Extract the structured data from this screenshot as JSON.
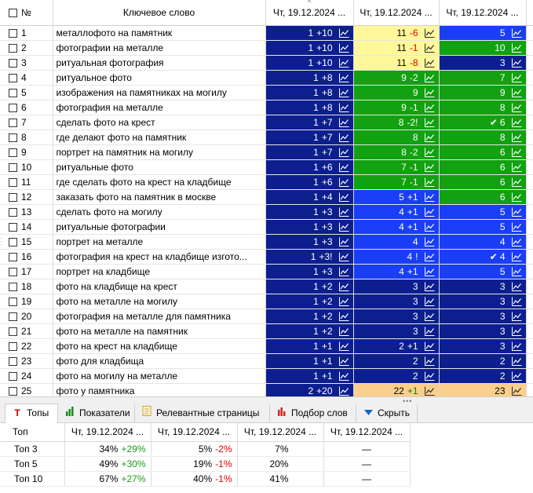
{
  "header": {
    "num_label": "№",
    "keyword_label": "Ключевое слово",
    "date_cols": [
      "Чт, 19.12.2024 ...",
      "Чт, 19.12.2024 ...",
      "Чт, 19.12.2024 ..."
    ]
  },
  "colors": {
    "navy": "#0d1f8e",
    "blue": "#1a3ef5",
    "green": "#12a110",
    "yellow": "#fff89a",
    "orange": "#fdcf8c"
  },
  "rows": [
    {
      "n": "1",
      "kw": "металлофото на памятник",
      "c": [
        {
          "v": "1",
          "d": "+10",
          "col": "navy"
        },
        {
          "v": "11",
          "d": "-6",
          "col": "yellow",
          "neg": true
        },
        {
          "v": "5",
          "d": "",
          "col": "blue"
        }
      ]
    },
    {
      "n": "2",
      "kw": "фотографии на металле",
      "c": [
        {
          "v": "1",
          "d": "+10",
          "col": "navy"
        },
        {
          "v": "11",
          "d": "-1",
          "col": "yellow",
          "neg": true
        },
        {
          "v": "10",
          "d": "",
          "col": "green"
        }
      ]
    },
    {
      "n": "3",
      "kw": "ритуальная фотография",
      "c": [
        {
          "v": "1",
          "d": "+10",
          "col": "navy"
        },
        {
          "v": "11",
          "d": "-8",
          "col": "yellow",
          "neg": true
        },
        {
          "v": "3",
          "d": "",
          "col": "navy"
        }
      ]
    },
    {
      "n": "4",
      "kw": "ритуальное фото",
      "c": [
        {
          "v": "1",
          "d": "+8",
          "col": "navy"
        },
        {
          "v": "9",
          "d": "-2",
          "col": "green"
        },
        {
          "v": "7",
          "d": "",
          "col": "green"
        }
      ]
    },
    {
      "n": "5",
      "kw": "изображения на памятниках на могилу",
      "c": [
        {
          "v": "1",
          "d": "+8",
          "col": "navy"
        },
        {
          "v": "9",
          "d": "",
          "col": "green"
        },
        {
          "v": "9",
          "d": "",
          "col": "green"
        }
      ]
    },
    {
      "n": "6",
      "kw": "фотография на металле",
      "c": [
        {
          "v": "1",
          "d": "+8",
          "col": "navy"
        },
        {
          "v": "9",
          "d": "-1",
          "col": "green"
        },
        {
          "v": "8",
          "d": "",
          "col": "green"
        }
      ]
    },
    {
      "n": "7",
      "kw": "сделать фото на крест",
      "c": [
        {
          "v": "1",
          "d": "+7",
          "col": "navy"
        },
        {
          "v": "8",
          "d": "-2!",
          "col": "green"
        },
        {
          "v": "6",
          "d": "",
          "col": "green",
          "check": true
        }
      ]
    },
    {
      "n": "8",
      "kw": "где делают фото на памятник",
      "c": [
        {
          "v": "1",
          "d": "+7",
          "col": "navy"
        },
        {
          "v": "8",
          "d": "",
          "col": "green"
        },
        {
          "v": "8",
          "d": "",
          "col": "green"
        }
      ]
    },
    {
      "n": "9",
      "kw": "портрет на памятник на могилу",
      "c": [
        {
          "v": "1",
          "d": "+7",
          "col": "navy"
        },
        {
          "v": "8",
          "d": "-2",
          "col": "green"
        },
        {
          "v": "6",
          "d": "",
          "col": "green"
        }
      ]
    },
    {
      "n": "10",
      "kw": "ритуальные фото",
      "c": [
        {
          "v": "1",
          "d": "+6",
          "col": "navy"
        },
        {
          "v": "7",
          "d": "-1",
          "col": "green"
        },
        {
          "v": "6",
          "d": "",
          "col": "green"
        }
      ]
    },
    {
      "n": "11",
      "kw": "где сделать фото на крест на кладбище",
      "c": [
        {
          "v": "1",
          "d": "+6",
          "col": "navy"
        },
        {
          "v": "7",
          "d": "-1",
          "col": "green"
        },
        {
          "v": "6",
          "d": "",
          "col": "green"
        }
      ]
    },
    {
      "n": "12",
      "kw": "заказать фото на памятник в москве",
      "c": [
        {
          "v": "1",
          "d": "+4",
          "col": "navy"
        },
        {
          "v": "5",
          "d": "+1",
          "col": "blue"
        },
        {
          "v": "6",
          "d": "",
          "col": "green"
        }
      ]
    },
    {
      "n": "13",
      "kw": "сделать фото на могилу",
      "c": [
        {
          "v": "1",
          "d": "+3",
          "col": "navy"
        },
        {
          "v": "4",
          "d": "+1",
          "col": "blue"
        },
        {
          "v": "5",
          "d": "",
          "col": "blue"
        }
      ]
    },
    {
      "n": "14",
      "kw": "ритуальные фотографии",
      "c": [
        {
          "v": "1",
          "d": "+3",
          "col": "navy"
        },
        {
          "v": "4",
          "d": "+1",
          "col": "blue"
        },
        {
          "v": "5",
          "d": "",
          "col": "blue"
        }
      ]
    },
    {
      "n": "15",
      "kw": "портрет на металле",
      "c": [
        {
          "v": "1",
          "d": "+3",
          "col": "navy"
        },
        {
          "v": "4",
          "d": "",
          "col": "blue"
        },
        {
          "v": "4",
          "d": "",
          "col": "blue"
        }
      ]
    },
    {
      "n": "16",
      "kw": "фотография на крест на кладбище изгото...",
      "c": [
        {
          "v": "1",
          "d": "+3!",
          "col": "navy"
        },
        {
          "v": "4",
          "d": "!",
          "col": "blue"
        },
        {
          "v": "4",
          "d": "",
          "col": "blue",
          "check": true
        }
      ]
    },
    {
      "n": "17",
      "kw": "портрет на кладбище",
      "c": [
        {
          "v": "1",
          "d": "+3",
          "col": "navy"
        },
        {
          "v": "4",
          "d": "+1",
          "col": "blue"
        },
        {
          "v": "5",
          "d": "",
          "col": "blue"
        }
      ]
    },
    {
      "n": "18",
      "kw": "фото на кладбище на крест",
      "c": [
        {
          "v": "1",
          "d": "+2",
          "col": "navy"
        },
        {
          "v": "3",
          "d": "",
          "col": "navy"
        },
        {
          "v": "3",
          "d": "",
          "col": "navy"
        }
      ]
    },
    {
      "n": "19",
      "kw": "фото на металле на могилу",
      "c": [
        {
          "v": "1",
          "d": "+2",
          "col": "navy"
        },
        {
          "v": "3",
          "d": "",
          "col": "navy"
        },
        {
          "v": "3",
          "d": "",
          "col": "navy"
        }
      ]
    },
    {
      "n": "20",
      "kw": "фотография на металле для памятника",
      "c": [
        {
          "v": "1",
          "d": "+2",
          "col": "navy"
        },
        {
          "v": "3",
          "d": "",
          "col": "navy"
        },
        {
          "v": "3",
          "d": "",
          "col": "navy"
        }
      ]
    },
    {
      "n": "21",
      "kw": "фото на металле на памятник",
      "c": [
        {
          "v": "1",
          "d": "+2",
          "col": "navy"
        },
        {
          "v": "3",
          "d": "",
          "col": "navy"
        },
        {
          "v": "3",
          "d": "",
          "col": "navy"
        }
      ]
    },
    {
      "n": "22",
      "kw": "фото на крест на кладбище",
      "c": [
        {
          "v": "1",
          "d": "+1",
          "col": "navy"
        },
        {
          "v": "2",
          "d": "+1",
          "col": "navy"
        },
        {
          "v": "3",
          "d": "",
          "col": "navy"
        }
      ]
    },
    {
      "n": "23",
      "kw": "фото для кладбища",
      "c": [
        {
          "v": "1",
          "d": "+1",
          "col": "navy"
        },
        {
          "v": "2",
          "d": "",
          "col": "navy"
        },
        {
          "v": "2",
          "d": "",
          "col": "navy"
        }
      ]
    },
    {
      "n": "24",
      "kw": "фото на могилу на металле",
      "c": [
        {
          "v": "1",
          "d": "+1",
          "col": "navy"
        },
        {
          "v": "2",
          "d": "",
          "col": "navy"
        },
        {
          "v": "2",
          "d": "",
          "col": "navy"
        }
      ]
    },
    {
      "n": "25",
      "kw": "фото у памятника",
      "c": [
        {
          "v": "2",
          "d": "+20",
          "col": "navy"
        },
        {
          "v": "22",
          "d": "+1",
          "col": "orange",
          "pos": true
        },
        {
          "v": "23",
          "d": "",
          "col": "orange"
        }
      ]
    }
  ],
  "tabs": [
    {
      "label": "Топы",
      "icon": "top-icon"
    },
    {
      "label": "Показатели",
      "icon": "bar-chart-icon"
    },
    {
      "label": "Релевантные страницы",
      "icon": "document-icon"
    },
    {
      "label": "Подбор слов",
      "icon": "words-chart-icon"
    },
    {
      "label": "Скрыть",
      "icon": "hide-arrow-icon"
    }
  ],
  "summary": {
    "label_header": "Топ",
    "date_cols": [
      "Чт, 19.12.2024 ...",
      "Чт, 19.12.2024 ...",
      "Чт, 19.12.2024 ...",
      "Чт, 19.12.2024 ..."
    ],
    "rows": [
      {
        "label": "Топ 3",
        "cells": [
          {
            "p": "34%",
            "d": "+29%",
            "t": "g"
          },
          {
            "p": "5%",
            "d": "-2%",
            "t": "r"
          },
          {
            "p": "7%",
            "d": "",
            "t": ""
          },
          {
            "p": "—",
            "d": "",
            "t": ""
          }
        ]
      },
      {
        "label": "Топ 5",
        "cells": [
          {
            "p": "49%",
            "d": "+30%",
            "t": "g"
          },
          {
            "p": "19%",
            "d": "-1%",
            "t": "r"
          },
          {
            "p": "20%",
            "d": "",
            "t": ""
          },
          {
            "p": "—",
            "d": "",
            "t": ""
          }
        ]
      },
      {
        "label": "Топ 10",
        "cells": [
          {
            "p": "67%",
            "d": "+27%",
            "t": "g"
          },
          {
            "p": "40%",
            "d": "-1%",
            "t": "r"
          },
          {
            "p": "41%",
            "d": "",
            "t": ""
          },
          {
            "p": "—",
            "d": "",
            "t": ""
          }
        ]
      }
    ]
  }
}
